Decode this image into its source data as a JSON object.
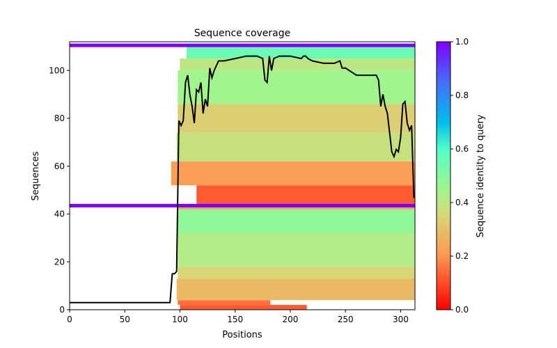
{
  "chart_data": {
    "type": "heatmap",
    "title": "Sequence coverage",
    "xlabel": "Positions",
    "ylabel": "Sequences",
    "xlim": [
      0,
      313
    ],
    "ylim": [
      0,
      112
    ],
    "x_ticks": [
      0,
      50,
      100,
      150,
      200,
      250,
      300
    ],
    "y_ticks": [
      0,
      20,
      40,
      60,
      80,
      100
    ],
    "colorbar": {
      "label": "Sequence identity to query",
      "range": [
        0.0,
        1.0
      ],
      "ticks": [
        "0.0",
        "0.2",
        "0.4",
        "0.6",
        "0.8",
        "1.0"
      ]
    },
    "query_rows": [
      {
        "y": 110.5,
        "x_start": 0,
        "x_end": 313,
        "identity": 1.0
      },
      {
        "y": 43.5,
        "x_start": 0,
        "x_end": 313,
        "identity": 1.0
      }
    ],
    "row_bands": [
      {
        "y_from": 0,
        "y_to": 2,
        "x_start": 100,
        "x_end": 215,
        "identity": 0.12
      },
      {
        "y_from": 2,
        "y_to": 4,
        "x_start": 98,
        "x_end": 182,
        "identity": 0.15
      },
      {
        "y_from": 4,
        "y_to": 13,
        "x_start": 97,
        "x_end": 313,
        "identity": 0.28
      },
      {
        "y_from": 13,
        "y_to": 18,
        "x_start": 98,
        "x_end": 313,
        "identity": 0.35
      },
      {
        "y_from": 18,
        "y_to": 32,
        "x_start": 98,
        "x_end": 313,
        "identity": 0.42
      },
      {
        "y_from": 32,
        "y_to": 42,
        "x_start": 98,
        "x_end": 313,
        "identity": 0.48
      },
      {
        "y_from": 42,
        "y_to": 43,
        "x_start": 98,
        "x_end": 313,
        "identity": 0.22
      },
      {
        "y_from": 44,
        "y_to": 52,
        "x_start": 115,
        "x_end": 313,
        "identity": 0.12
      },
      {
        "y_from": 52,
        "y_to": 62,
        "x_start": 92,
        "x_end": 313,
        "identity": 0.22
      },
      {
        "y_from": 62,
        "y_to": 74,
        "x_start": 97,
        "x_end": 313,
        "identity": 0.38
      },
      {
        "y_from": 74,
        "y_to": 86,
        "x_start": 98,
        "x_end": 313,
        "identity": 0.33
      },
      {
        "y_from": 86,
        "y_to": 100,
        "x_start": 98,
        "x_end": 313,
        "identity": 0.45
      },
      {
        "y_from": 100,
        "y_to": 105,
        "x_start": 100,
        "x_end": 313,
        "identity": 0.4
      },
      {
        "y_from": 105,
        "y_to": 110,
        "x_start": 106,
        "x_end": 313,
        "identity": 0.55
      }
    ],
    "coverage_line": {
      "x": [
        0,
        91,
        93,
        95,
        97,
        99,
        101,
        103,
        105,
        107,
        109,
        111,
        113,
        115,
        117,
        119,
        121,
        123,
        125,
        127,
        129,
        131,
        135,
        140,
        150,
        160,
        170,
        175,
        177,
        179,
        181,
        183,
        185,
        190,
        200,
        210,
        212,
        214,
        216,
        220,
        230,
        240,
        245,
        247,
        250,
        260,
        270,
        278,
        280,
        282,
        284,
        286,
        288,
        290,
        292,
        294,
        296,
        298,
        300,
        302,
        304,
        306,
        308,
        310,
        312,
        313
      ],
      "y": [
        3,
        3,
        15,
        15,
        16,
        79,
        77,
        79,
        95,
        98,
        90,
        85,
        78,
        92,
        91,
        95,
        82,
        88,
        85,
        101,
        97,
        100,
        104,
        104,
        105,
        106,
        106,
        105,
        96,
        95,
        106,
        100,
        105,
        106,
        106,
        105,
        106,
        106,
        105,
        104,
        103,
        103,
        104,
        101,
        101,
        98,
        98,
        98,
        96,
        85,
        90,
        85,
        82,
        74,
        66,
        64,
        67,
        66,
        72,
        86,
        87,
        78,
        75,
        77,
        47,
        47
      ]
    }
  }
}
